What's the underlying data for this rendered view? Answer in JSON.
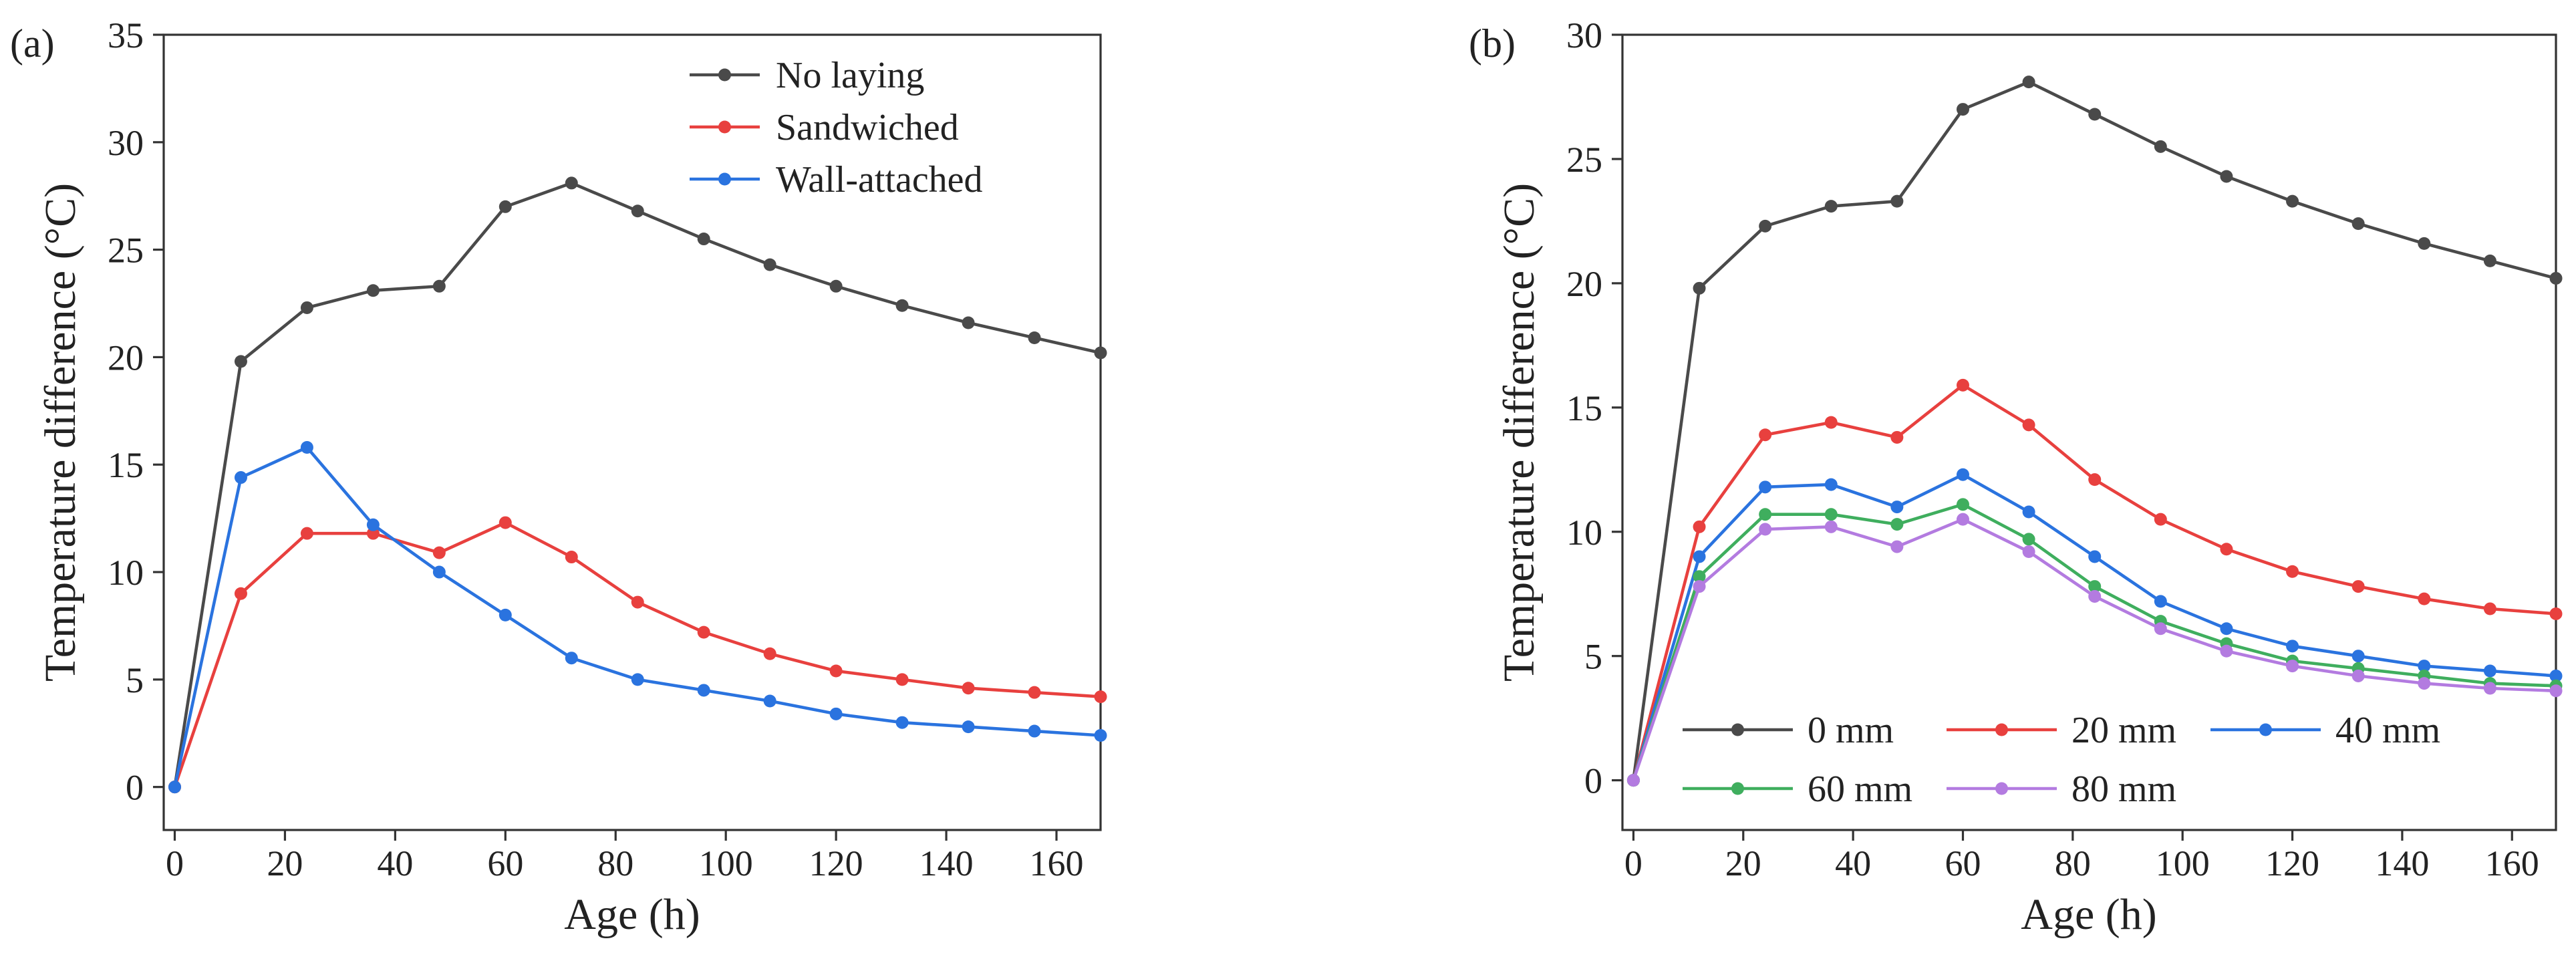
{
  "chart_data": [
    {
      "type": "line",
      "panel_label": "(a)",
      "xlabel": "Age (h)",
      "ylabel": "Temperature difference (°C)",
      "xlim": [
        -2,
        168
      ],
      "ylim": [
        -2,
        35
      ],
      "xticks": [
        "0",
        "20",
        "40",
        "60",
        "80",
        "100",
        "120",
        "140",
        "160"
      ],
      "yticks": [
        "0",
        "5",
        "10",
        "15",
        "20",
        "25",
        "30",
        "35"
      ],
      "legend_position": "top-right",
      "legend_columns": 1,
      "x": [
        0,
        12,
        24,
        36,
        48,
        60,
        72,
        84,
        96,
        108,
        120,
        132,
        144,
        156,
        168
      ],
      "series": [
        {
          "name": "No laying",
          "color": "#4a4a4a",
          "values": [
            0,
            19.8,
            22.3,
            23.1,
            23.3,
            27.0,
            28.1,
            26.8,
            25.5,
            24.3,
            23.3,
            22.4,
            21.6,
            20.9,
            20.2
          ]
        },
        {
          "name": "Sandwiched",
          "color": "#e8403e",
          "values": [
            0,
            9.0,
            11.8,
            11.8,
            10.9,
            12.3,
            10.7,
            8.6,
            7.2,
            6.2,
            5.4,
            5.0,
            4.6,
            4.4,
            4.2
          ]
        },
        {
          "name": "Wall-attached",
          "color": "#2a73df",
          "values": [
            0,
            14.4,
            15.8,
            12.2,
            10.0,
            8.0,
            6.0,
            5.0,
            4.5,
            4.0,
            3.4,
            3.0,
            2.8,
            2.6,
            2.4
          ]
        }
      ]
    },
    {
      "type": "line",
      "panel_label": "(b)",
      "xlabel": "Age (h)",
      "ylabel": "Temperature difference (°C)",
      "xlim": [
        -2,
        168
      ],
      "ylim": [
        -2,
        30
      ],
      "xticks": [
        "0",
        "20",
        "40",
        "60",
        "80",
        "100",
        "120",
        "140",
        "160"
      ],
      "yticks": [
        "0",
        "5",
        "10",
        "15",
        "20",
        "25",
        "30"
      ],
      "legend_position": "bottom",
      "legend_columns": 3,
      "x": [
        0,
        12,
        24,
        36,
        48,
        60,
        72,
        84,
        96,
        108,
        120,
        132,
        144,
        156,
        168
      ],
      "series": [
        {
          "name": "0 mm",
          "color": "#4a4a4a",
          "values": [
            0,
            19.8,
            22.3,
            23.1,
            23.3,
            27.0,
            28.1,
            26.8,
            25.5,
            24.3,
            23.3,
            22.4,
            21.6,
            20.9,
            20.2
          ]
        },
        {
          "name": "20 mm",
          "color": "#e8403e",
          "values": [
            0,
            10.2,
            13.9,
            14.4,
            13.8,
            15.9,
            14.3,
            12.1,
            10.5,
            9.3,
            8.4,
            7.8,
            7.3,
            6.9,
            6.7
          ]
        },
        {
          "name": "40 mm",
          "color": "#2a73df",
          "values": [
            0,
            9.0,
            11.8,
            11.9,
            11.0,
            12.3,
            10.8,
            9.0,
            7.2,
            6.1,
            5.4,
            5.0,
            4.6,
            4.4,
            4.2
          ]
        },
        {
          "name": "60 mm",
          "color": "#3fae5e",
          "values": [
            0,
            8.2,
            10.7,
            10.7,
            10.3,
            11.1,
            9.7,
            7.8,
            6.4,
            5.5,
            4.8,
            4.5,
            4.2,
            3.9,
            3.8
          ]
        },
        {
          "name": "80 mm",
          "color": "#b37be0",
          "values": [
            0,
            7.8,
            10.1,
            10.2,
            9.4,
            10.5,
            9.2,
            7.4,
            6.1,
            5.2,
            4.6,
            4.2,
            3.9,
            3.7,
            3.6
          ]
        }
      ]
    }
  ]
}
